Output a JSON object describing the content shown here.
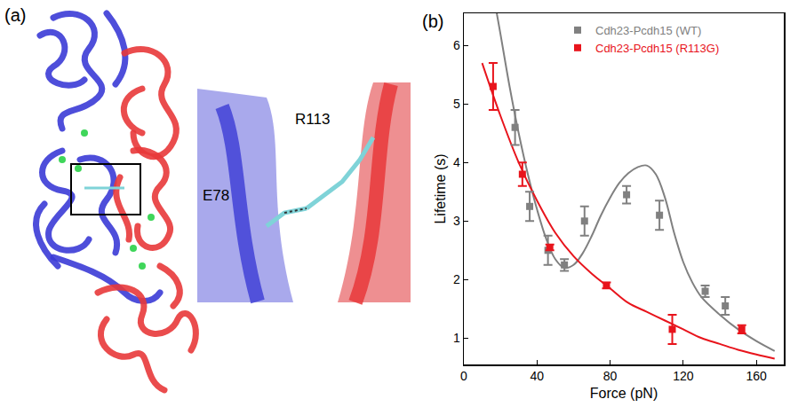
{
  "panel_a": {
    "letter": "(a)",
    "labels": [
      "E78",
      "R113"
    ]
  },
  "chart_data": {
    "type": "scatter",
    "panel": "(b)",
    "x_label": "Force (pN)",
    "y_label": "Lifetime (s)",
    "xlim": [
      0,
      175
    ],
    "xticks": [
      0,
      40,
      80,
      120,
      160
    ],
    "ylim": [
      0.55,
      6.55
    ],
    "yticks": [
      1,
      2,
      3,
      4,
      5,
      6
    ],
    "grid": false,
    "legend": "top",
    "series": [
      {
        "name": "Cdh23-Pcdh15 (WT)",
        "color": "#808080",
        "type": "scatter",
        "marker": "square",
        "x": [
          28,
          36,
          46,
          55,
          66,
          89,
          107,
          132,
          143
        ],
        "values": [
          4.6,
          3.25,
          2.5,
          2.25,
          3.0,
          3.45,
          3.1,
          1.8,
          1.55
        ],
        "errors": [
          0.3,
          0.25,
          0.25,
          0.1,
          0.25,
          0.15,
          0.25,
          0.1,
          0.15
        ]
      },
      {
        "name": "Cdh23-Pcdh15 (R113G)",
        "color": "#e8141c",
        "type": "scatter",
        "marker": "square",
        "x": [
          16,
          32,
          47,
          78,
          114,
          152
        ],
        "values": [
          5.3,
          3.8,
          2.55,
          1.9,
          1.15,
          1.15
        ],
        "errors": [
          0.4,
          0.2,
          0.05,
          0.05,
          0.25,
          0.07
        ]
      },
      {
        "color": "#808080",
        "type": "line",
        "line_style": "solid",
        "x": [
          18,
          20,
          25,
          30,
          35,
          40,
          45,
          50,
          55,
          60,
          65,
          70,
          75,
          80,
          85,
          90,
          95,
          100,
          105,
          110,
          115,
          120,
          125,
          130,
          140,
          150,
          160,
          170
        ],
        "values": [
          6.55,
          6.2,
          5.3,
          4.5,
          3.8,
          3.2,
          2.7,
          2.35,
          2.2,
          2.25,
          2.45,
          2.75,
          3.1,
          3.4,
          3.65,
          3.82,
          3.92,
          3.95,
          3.8,
          3.4,
          2.8,
          2.3,
          1.95,
          1.7,
          1.4,
          1.15,
          0.95,
          0.78
        ]
      },
      {
        "color": "#e8141c",
        "type": "line",
        "line_style": "solid",
        "x": [
          10,
          20,
          30,
          40,
          50,
          60,
          70,
          80,
          90,
          100,
          110,
          120,
          130,
          140,
          150,
          160,
          170
        ],
        "values": [
          5.7,
          4.8,
          4.0,
          3.35,
          2.8,
          2.4,
          2.1,
          1.85,
          1.6,
          1.45,
          1.3,
          1.15,
          1.0,
          0.9,
          0.8,
          0.72,
          0.65
        ]
      }
    ]
  }
}
